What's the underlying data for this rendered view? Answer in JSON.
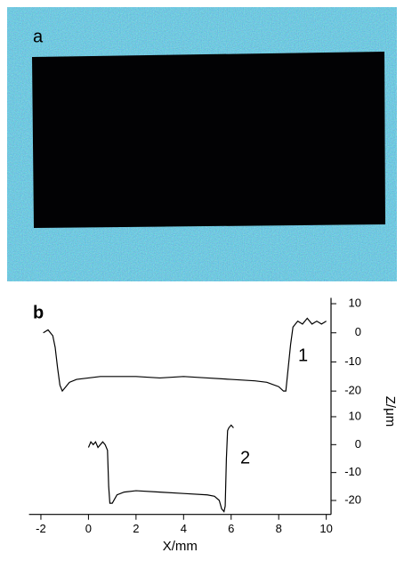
{
  "panel_a": {
    "label": "a"
  },
  "panel_b": {
    "label": "b"
  },
  "chart_data": [
    {
      "type": "line",
      "xlim": [
        -2.5,
        10.2
      ],
      "ylim": [
        -25,
        12
      ],
      "yticks": [
        10,
        0,
        -10,
        -20
      ],
      "ylabel": "Z/μm",
      "series": [
        {
          "name": "1",
          "color": "#000000",
          "x": [
            -1.9,
            -1.7,
            -1.5,
            -1.4,
            -1.3,
            -1.2,
            -1.1,
            -1.0,
            -0.8,
            -0.5,
            0,
            0.5,
            1,
            2,
            3,
            4,
            5,
            6,
            7,
            7.5,
            8,
            8.2,
            8.3,
            8.4,
            8.5,
            8.6,
            8.8,
            9,
            9.2,
            9.4,
            9.6,
            9.8,
            10
          ],
          "values": [
            0,
            1,
            -1,
            -5,
            -12,
            -18,
            -20,
            -19,
            -17,
            -16,
            -15.5,
            -15,
            -15,
            -15,
            -15.5,
            -15,
            -15.5,
            -16,
            -16.5,
            -17,
            -18.5,
            -20,
            -20,
            -12,
            -4,
            2,
            4,
            3,
            5,
            3,
            4,
            3,
            4
          ]
        }
      ]
    },
    {
      "type": "line",
      "xlim": [
        -2.5,
        10.2
      ],
      "ylim": [
        -25,
        12
      ],
      "yticks": [
        10,
        0,
        -10,
        -20
      ],
      "xticks": [
        -2,
        0,
        2,
        4,
        6,
        8,
        10
      ],
      "xlabel": "X/mm",
      "series": [
        {
          "name": "2",
          "color": "#000000",
          "x": [
            0,
            0.1,
            0.2,
            0.3,
            0.4,
            0.5,
            0.6,
            0.7,
            0.8,
            0.85,
            0.9,
            1.0,
            1.2,
            1.5,
            2,
            3,
            4,
            5,
            5.3,
            5.5,
            5.6,
            5.7,
            5.75,
            5.8,
            5.85,
            5.9,
            6.0,
            6.1
          ],
          "values": [
            -1,
            1,
            0,
            1,
            -1,
            0,
            1,
            0,
            -2,
            -15,
            -21,
            -21,
            -18,
            -17,
            -16.5,
            -17,
            -17.5,
            -18,
            -18.5,
            -20,
            -23,
            -24,
            -22,
            -5,
            5,
            6,
            7,
            6
          ]
        }
      ]
    }
  ]
}
